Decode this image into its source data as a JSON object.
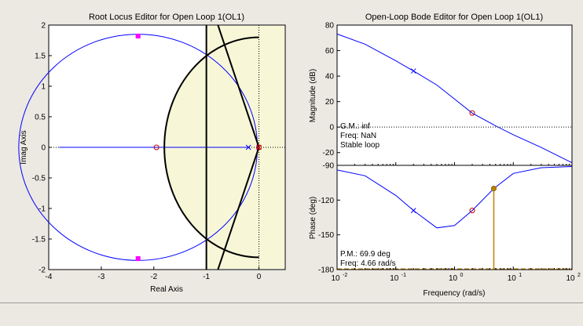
{
  "root_locus": {
    "title": "Root Locus Editor for Open Loop 1(OL1)",
    "xlabel": "Real Axis",
    "ylabel": "Imag Axis",
    "xticks": [
      "-4",
      "-3",
      "-2",
      "-1",
      "0"
    ],
    "yticks": [
      "2",
      "1.5",
      "1",
      "0.5",
      "0",
      "-0.5",
      "-1",
      "-1.5",
      "-2"
    ],
    "colors": {
      "locus": "#0000ff",
      "shaded_region": "#f7f7d8",
      "constraint": "#000000",
      "closed_loop_pole": "#ff00ff",
      "zero": "#c00000"
    }
  },
  "bode": {
    "title": "Open-Loop Bode Editor for Open Loop 1(OL1)",
    "magnitude": {
      "ylabel": "Magnitude (dB)",
      "yticks": [
        "80",
        "60",
        "40",
        "20",
        "0",
        "-20"
      ],
      "info": [
        "G.M.: inf",
        "Freq: NaN",
        "Stable loop"
      ]
    },
    "phase": {
      "ylabel": "Phase (deg)",
      "yticks": [
        "-90",
        "-120",
        "-150",
        "-180"
      ],
      "info": [
        "P.M.: 69.9 deg",
        "Freq: 4.66 rad/s"
      ]
    },
    "xlabel": "Frequency (rad/s)",
    "xtick_exponents": [
      "-2",
      "-1",
      "0",
      "1",
      "2"
    ],
    "colors": {
      "curve": "#0000ff",
      "margin": "#c08000"
    }
  },
  "chart_data": [
    {
      "type": "scatter",
      "title": "Root Locus Editor for Open Loop 1(OL1)",
      "xlabel": "Real Axis",
      "ylabel": "Imag Axis",
      "xlim": [
        -4,
        0.5
      ],
      "ylim": [
        -2,
        2
      ],
      "series": [
        {
          "name": "open-loop poles (x)",
          "points": [
            [
              -0.2,
              0
            ],
            [
              0,
              0
            ]
          ]
        },
        {
          "name": "open-loop zeros (o)",
          "points": [
            [
              -1.95,
              0
            ],
            [
              0,
              0
            ]
          ]
        },
        {
          "name": "closed-loop poles",
          "points": [
            [
              -2.3,
              1.82
            ],
            [
              -2.3,
              -1.82
            ]
          ]
        }
      ]
    },
    {
      "type": "line",
      "title": "Open-Loop Bode Editor for Open Loop 1(OL1)",
      "xlabel": "Frequency (rad/s)",
      "xscale": "log",
      "xlim": [
        0.01,
        100
      ],
      "series": [
        {
          "name": "Magnitude (dB)",
          "ylim": [
            -30,
            80
          ],
          "x": [
            0.01,
            0.03,
            0.1,
            0.2,
            0.5,
            1,
            2,
            5,
            10,
            30,
            100
          ],
          "y": [
            73,
            65,
            52,
            44,
            33,
            22,
            11,
            1,
            -6,
            -16,
            -28
          ]
        },
        {
          "name": "Phase (deg)",
          "ylim": [
            -180,
            -90
          ],
          "x": [
            0.01,
            0.03,
            0.1,
            0.2,
            0.5,
            1,
            2,
            4.66,
            10,
            30,
            100
          ],
          "y": [
            -94,
            -99,
            -116,
            -129,
            -144,
            -142,
            -129,
            -110,
            -97,
            -92,
            -91
          ]
        }
      ]
    }
  ]
}
